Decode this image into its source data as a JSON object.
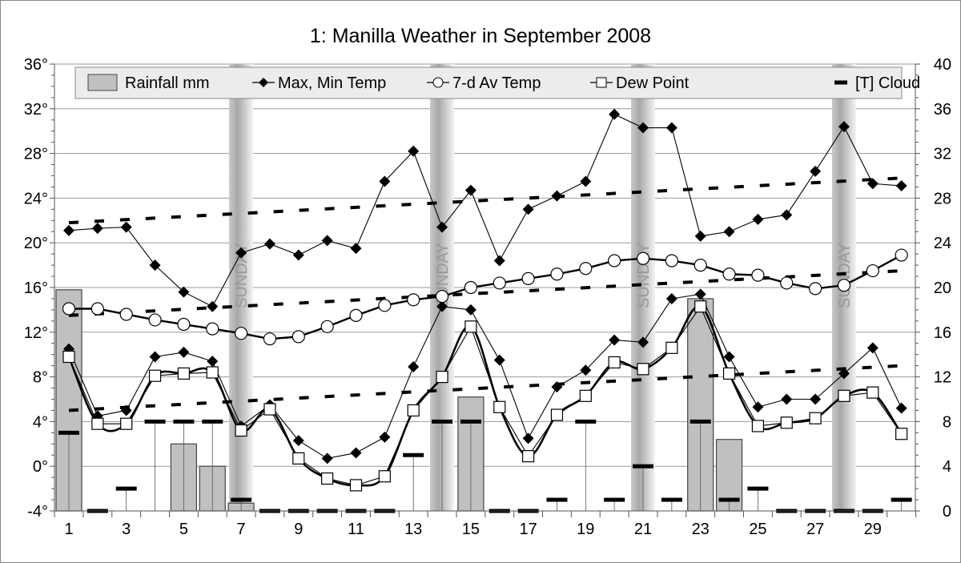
{
  "chart_data": {
    "type": "bar+line",
    "title": "1: Manilla Weather in September 2008",
    "x": [
      1,
      2,
      3,
      4,
      5,
      6,
      7,
      8,
      9,
      10,
      11,
      12,
      13,
      14,
      15,
      16,
      17,
      18,
      19,
      20,
      21,
      22,
      23,
      24,
      25,
      26,
      27,
      28,
      29,
      30
    ],
    "x_tick_labels": [
      "1",
      "3",
      "5",
      "7",
      "9",
      "11",
      "13",
      "15",
      "17",
      "19",
      "21",
      "23",
      "25",
      "27",
      "29"
    ],
    "left_axis": {
      "range": [
        -4,
        36
      ],
      "ticks": [
        "-4°",
        "0°",
        "4°",
        "8°",
        "12°",
        "16°",
        "20°",
        "24°",
        "28°",
        "32°",
        "36°"
      ]
    },
    "right_axis": {
      "range": [
        0,
        40
      ],
      "ticks": [
        "0",
        "4",
        "8",
        "12",
        "16",
        "20",
        "24",
        "28",
        "32",
        "36",
        "40"
      ]
    },
    "grid": true,
    "legend_position": "top",
    "legend": [
      "Rainfall mm",
      "Max, Min Temp",
      "7-d Av Temp",
      "Dew Point",
      "[T] Cloud"
    ],
    "sunday_label": "SUNDAY",
    "sundays": [
      7,
      14,
      21,
      28
    ],
    "series": [
      {
        "name": "Rainfall mm",
        "axis": "right",
        "kind": "bar",
        "values": {
          "1": 19.8,
          "5": 6.0,
          "6": 4.0,
          "7": 0.7,
          "15": 10.2,
          "23": 19.0,
          "24": 6.4
        }
      },
      {
        "name": "Max, Min Temp",
        "axis": "left",
        "kind": "line-diamond",
        "part": "max",
        "values": [
          21.1,
          21.3,
          21.4,
          18.0,
          15.6,
          14.3,
          19.1,
          19.9,
          18.9,
          20.2,
          19.5,
          25.5,
          28.2,
          21.4,
          24.7,
          18.4,
          23.0,
          24.2,
          25.5,
          31.5,
          30.3,
          30.3,
          20.6,
          21.0,
          22.1,
          22.5,
          26.4,
          30.4,
          25.3,
          25.1
        ]
      },
      {
        "name": "Max, Min Temp",
        "axis": "left",
        "kind": "line-diamond",
        "part": "min",
        "values": [
          10.5,
          4.5,
          5.0,
          9.8,
          10.2,
          9.4,
          3.6,
          5.5,
          2.3,
          0.7,
          1.2,
          2.6,
          8.9,
          14.3,
          14.0,
          9.5,
          2.5,
          7.1,
          8.6,
          11.3,
          11.1,
          15.0,
          15.4,
          9.8,
          5.3,
          6.0,
          6.0,
          8.3,
          10.6,
          5.2
        ]
      },
      {
        "name": "7-d Av Temp",
        "axis": "left",
        "kind": "line-circle",
        "values": [
          14.1,
          14.1,
          13.6,
          13.1,
          12.7,
          12.3,
          11.9,
          11.4,
          11.6,
          12.5,
          13.5,
          14.4,
          14.9,
          15.2,
          16.0,
          16.4,
          16.8,
          17.2,
          17.7,
          18.4,
          18.6,
          18.4,
          18.0,
          17.2,
          17.1,
          16.4,
          15.9,
          16.2,
          17.5,
          18.9
        ]
      },
      {
        "name": "Dew Point",
        "axis": "left",
        "kind": "line-square",
        "values": [
          9.8,
          3.8,
          3.8,
          8.1,
          8.3,
          8.4,
          3.2,
          5.1,
          0.7,
          -1.1,
          -1.7,
          -0.9,
          5.0,
          8.0,
          12.5,
          5.3,
          0.9,
          4.6,
          6.3,
          9.3,
          8.7,
          10.6,
          14.3,
          8.3,
          3.6,
          3.9,
          4.3,
          6.3,
          6.6,
          2.9
        ]
      },
      {
        "name": "[T] Cloud",
        "axis": "right",
        "kind": "dash",
        "values": [
          7,
          0,
          2,
          8,
          8,
          8,
          1,
          0,
          0,
          0,
          0,
          0,
          5,
          8,
          8,
          0,
          0,
          1,
          8,
          1,
          4,
          1,
          8,
          1,
          2,
          0,
          0,
          0,
          0,
          1
        ]
      }
    ],
    "trend_lines": [
      {
        "axis": "left",
        "from": 21.8,
        "to": 25.8
      },
      {
        "axis": "left",
        "from": 13.5,
        "to": 17.5
      },
      {
        "axis": "left",
        "from": 5.0,
        "to": 9.0
      }
    ],
    "colors": {
      "bar": "#c0c0c0",
      "line": "#000000",
      "sunday_band": "#b0b0b0",
      "legend_bg": "#ececec",
      "grid": "#999999"
    }
  }
}
